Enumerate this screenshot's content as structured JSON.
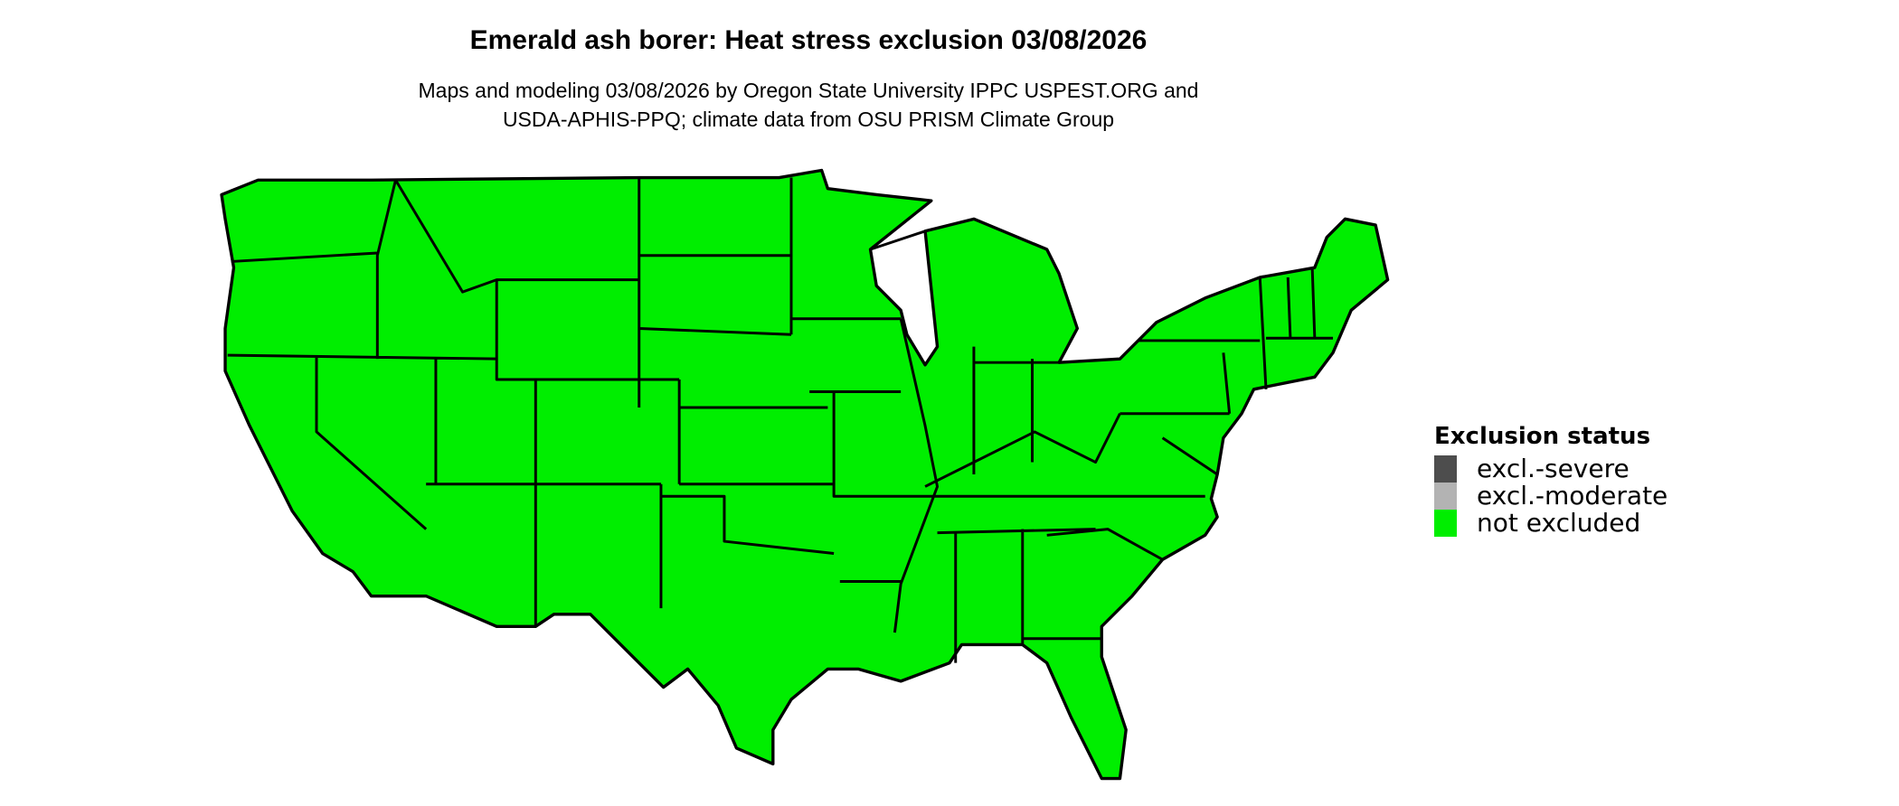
{
  "title": "Emerald ash borer: Heat stress exclusion 03/08/2026",
  "subtitle_line1": "Maps and modeling 03/08/2026 by Oregon State University IPPC USPEST.ORG and",
  "subtitle_line2": "USDA-APHIS-PPQ; climate data from OSU PRISM Climate Group",
  "map": {
    "region": "conterminous United States",
    "fill_status": "not excluded",
    "fill_color": "#00ee00",
    "border_color": "#000000"
  },
  "legend": {
    "title": "Exclusion status",
    "items": [
      {
        "label": "excl.-severe",
        "color": "#4d4d4d"
      },
      {
        "label": "excl.-moderate",
        "color": "#b3b3b3"
      },
      {
        "label": "not excluded",
        "color": "#00ee00"
      }
    ]
  }
}
